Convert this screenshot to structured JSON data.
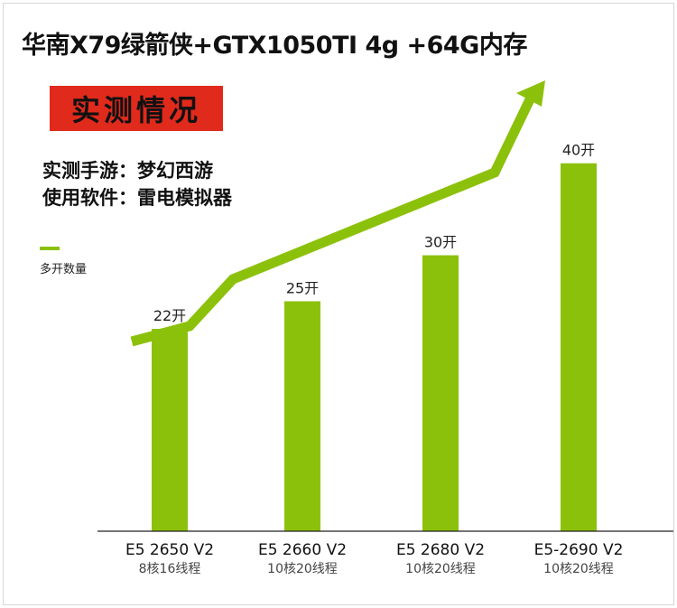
{
  "title": "华南X79绿箭侠+GTX1050TI 4g +64G内存",
  "badge": "实测情况",
  "info": {
    "line1": "实测手游：梦幻西游",
    "line2": "使用软件：雷电模拟器"
  },
  "legend": "多开数量",
  "colors": {
    "bar": "#8cc10b",
    "badge": "#e02a1c"
  },
  "chart_data": {
    "type": "bar",
    "categories": [
      "E5 2650 V2",
      "E5 2660 V2",
      "E5 2680 V2",
      "E5-2690 V2"
    ],
    "subcategories": [
      "8核16线程",
      "10核20线程",
      "10核20线程",
      "10核20线程"
    ],
    "series": [
      {
        "name": "多开数量",
        "values": [
          22,
          25,
          30,
          40
        ]
      }
    ],
    "data_labels": [
      "22开",
      "25开",
      "30开",
      "40开"
    ],
    "ylim": [
      0,
      44
    ],
    "trend_arrow": true,
    "grid": false
  }
}
